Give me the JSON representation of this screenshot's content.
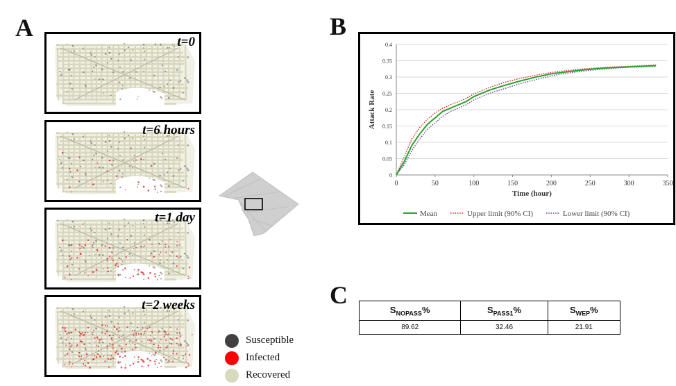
{
  "panels": {
    "a": "A",
    "b": "B",
    "c": "C"
  },
  "maps": [
    {
      "label": "t=0",
      "infected_level": 0
    },
    {
      "label": "t=6 hours",
      "infected_level": 0.12
    },
    {
      "label": "t=1 day",
      "infected_level": 0.35
    },
    {
      "label": "t=2 weeks",
      "infected_level": 0.8
    }
  ],
  "legend_a": [
    {
      "label": "Susceptible",
      "color": "#404040"
    },
    {
      "label": "Infected",
      "color": "#ff0000"
    },
    {
      "label": "Recovered",
      "color": "#d9d9bf"
    }
  ],
  "colors": {
    "map_base": "#d8d6bc",
    "map_dark": "#555555",
    "map_infected": "#d42020",
    "dc_fill": "#cfcfcf"
  },
  "chart_data": {
    "type": "line",
    "xlabel": "Time (hour)",
    "ylabel": "Attack Rate",
    "xlim": [
      0,
      350
    ],
    "ylim": [
      0,
      0.4
    ],
    "x_ticks": [
      0,
      50,
      100,
      150,
      200,
      250,
      300,
      350
    ],
    "y_ticks": [
      0,
      0.05,
      0.1,
      0.15,
      0.2,
      0.25,
      0.3,
      0.35,
      0.4
    ],
    "y_tick_labels": [
      "0",
      "0.05",
      "0.1",
      "0.15",
      "0.2",
      "0.25",
      "0.3",
      "0.35",
      "0.4"
    ],
    "grid": "horizontal",
    "legend_position": "bottom",
    "series": [
      {
        "name": "Mean",
        "color": "#2ca02c",
        "style": "solid",
        "x": [
          0,
          10,
          20,
          30,
          40,
          50,
          60,
          70,
          80,
          90,
          100,
          120,
          140,
          160,
          180,
          200,
          220,
          240,
          260,
          280,
          300,
          320,
          335
        ],
        "values": [
          0,
          0.04,
          0.09,
          0.125,
          0.155,
          0.175,
          0.195,
          0.205,
          0.215,
          0.225,
          0.24,
          0.26,
          0.275,
          0.288,
          0.3,
          0.31,
          0.316,
          0.322,
          0.326,
          0.329,
          0.331,
          0.333,
          0.335
        ]
      },
      {
        "name": "Upper limit (90% CI)",
        "color": "#d62728",
        "style": "dotted",
        "x": [
          0,
          10,
          20,
          30,
          40,
          50,
          60,
          70,
          80,
          90,
          100,
          120,
          140,
          160,
          180,
          200,
          220,
          240,
          260,
          280,
          300,
          320,
          335
        ],
        "values": [
          0,
          0.055,
          0.11,
          0.145,
          0.17,
          0.19,
          0.205,
          0.215,
          0.225,
          0.235,
          0.248,
          0.268,
          0.284,
          0.296,
          0.306,
          0.314,
          0.32,
          0.325,
          0.328,
          0.331,
          0.333,
          0.335,
          0.337
        ]
      },
      {
        "name": "Lower limit (90% CI)",
        "color": "#6a3d9a",
        "style": "dotted",
        "x": [
          0,
          10,
          20,
          30,
          40,
          50,
          60,
          70,
          80,
          90,
          100,
          120,
          140,
          160,
          180,
          200,
          220,
          240,
          260,
          280,
          300,
          320,
          335
        ],
        "values": [
          0,
          0.03,
          0.075,
          0.11,
          0.14,
          0.16,
          0.18,
          0.195,
          0.205,
          0.215,
          0.23,
          0.25,
          0.265,
          0.28,
          0.292,
          0.304,
          0.312,
          0.318,
          0.323,
          0.327,
          0.33,
          0.332,
          0.333
        ]
      }
    ]
  },
  "table_c": {
    "headers": [
      {
        "main": "S",
        "sub": "NOPASS",
        "suffix": "%"
      },
      {
        "main": "S",
        "sub": "PASS1",
        "suffix": "%"
      },
      {
        "main": "S",
        "sub": "WEP",
        "suffix": "%"
      }
    ],
    "values": [
      "89.62",
      "32.46",
      "21.91"
    ]
  }
}
